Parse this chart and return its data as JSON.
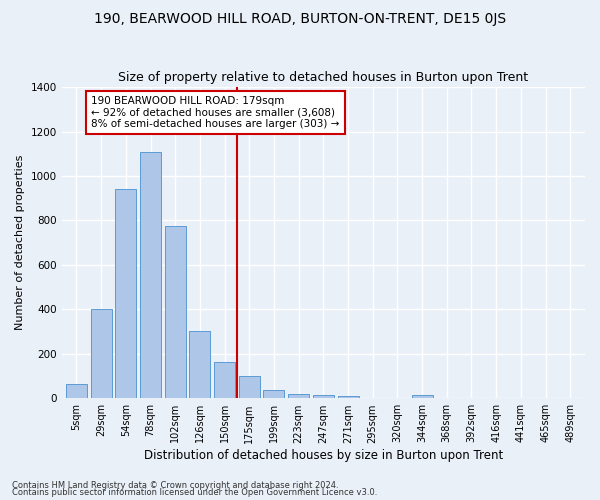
{
  "title": "190, BEARWOOD HILL ROAD, BURTON-ON-TRENT, DE15 0JS",
  "subtitle": "Size of property relative to detached houses in Burton upon Trent",
  "xlabel": "Distribution of detached houses by size in Burton upon Trent",
  "ylabel": "Number of detached properties",
  "footer1": "Contains HM Land Registry data © Crown copyright and database right 2024.",
  "footer2": "Contains public sector information licensed under the Open Government Licence v3.0.",
  "bar_labels": [
    "5sqm",
    "29sqm",
    "54sqm",
    "78sqm",
    "102sqm",
    "126sqm",
    "150sqm",
    "175sqm",
    "199sqm",
    "223sqm",
    "247sqm",
    "271sqm",
    "295sqm",
    "320sqm",
    "344sqm",
    "368sqm",
    "392sqm",
    "416sqm",
    "441sqm",
    "465sqm",
    "489sqm"
  ],
  "bar_values": [
    65,
    400,
    940,
    1110,
    775,
    305,
    163,
    100,
    38,
    20,
    15,
    10,
    0,
    0,
    13,
    0,
    0,
    0,
    0,
    0,
    0
  ],
  "bar_color": "#aec6e8",
  "bar_edge_color": "#5b9bd5",
  "vline_x": 6.5,
  "vline_color": "#cc0000",
  "annotation_text": "190 BEARWOOD HILL ROAD: 179sqm\n← 92% of detached houses are smaller (3,608)\n8% of semi-detached houses are larger (303) →",
  "annotation_box_color": "#ffffff",
  "annotation_box_edge": "#cc0000",
  "ylim": [
    0,
    1400
  ],
  "bg_color": "#eaf0f8",
  "grid_color": "#ffffff",
  "title_fontsize": 10,
  "subtitle_fontsize": 9,
  "ylabel_fontsize": 8,
  "xlabel_fontsize": 8.5,
  "tick_fontsize": 7,
  "annot_fontsize": 7.5,
  "footer_fontsize": 6
}
